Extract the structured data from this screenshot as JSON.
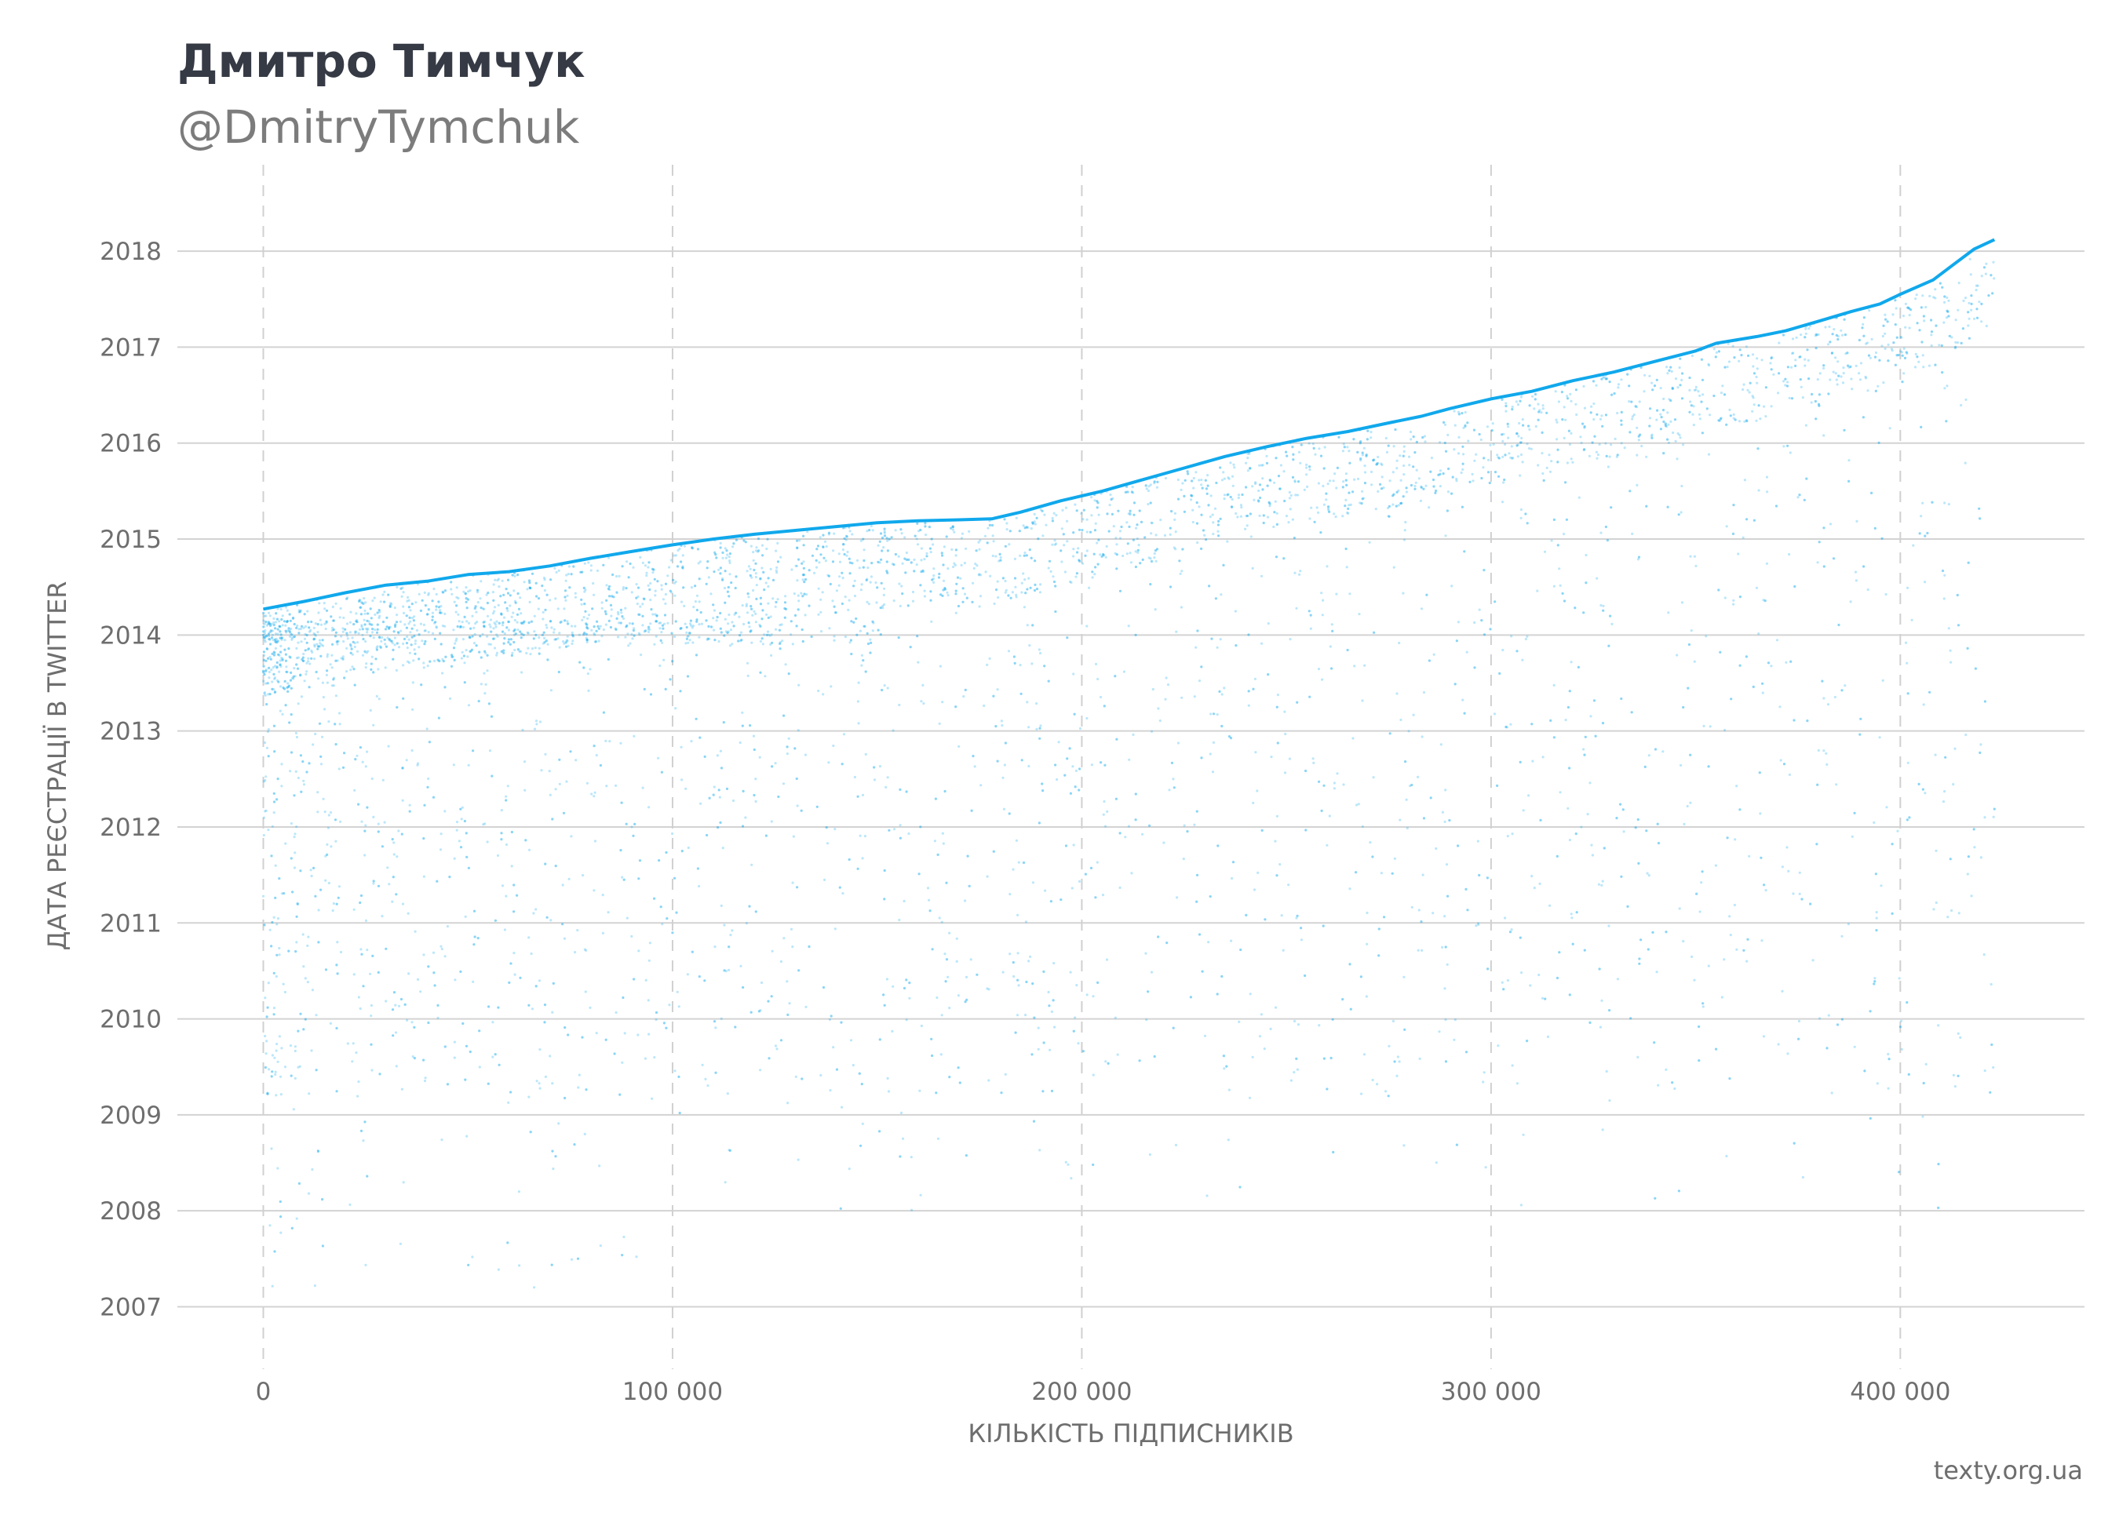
{
  "title": "Дмитро Тимчук",
  "subtitle": "@DmitryTymchuk",
  "source": "texty.org.ua",
  "colors": {
    "points": "#10a8ec",
    "grid_y": "#d3d3d3",
    "grid_x": "#d0d0d0",
    "text": "#6e6e6e"
  },
  "chart_data": {
    "type": "scatter",
    "xlabel": "КІЛЬКІСТЬ ПІДПИСНИКІВ",
    "ylabel": "ДАТА РЕЄСТРАЦІЇ В TWITTER",
    "xlim": [
      -21000,
      445000
    ],
    "ylim": [
      2006.35,
      2018.9
    ],
    "x_ticks": [
      0,
      100000,
      200000,
      300000,
      400000
    ],
    "x_tick_labels": [
      "0",
      "100 000",
      "200 000",
      "300 000",
      "400 000"
    ],
    "y_ticks": [
      2007,
      2008,
      2009,
      2010,
      2011,
      2012,
      2013,
      2014,
      2015,
      2016,
      2017,
      2018
    ],
    "y_tick_labels": [
      "2007",
      "2008",
      "2009",
      "2010",
      "2011",
      "2012",
      "2013",
      "2014",
      "2015",
      "2016",
      "2017",
      "2018"
    ],
    "grid": {
      "x": "dashed",
      "y": "solid"
    },
    "series": [
      {
        "upper_envelope": {
          "x": [
            0,
            10000,
            20000,
            30000,
            40000,
            50000,
            60000,
            70000,
            80000,
            90000,
            100000,
            110000,
            120000,
            130000,
            140000,
            150000,
            160000,
            170000,
            178000,
            185000,
            195000,
            205000,
            215000,
            225000,
            235000,
            245000,
            255000,
            265000,
            275000,
            283000,
            290000,
            300000,
            310000,
            320000,
            330000,
            340000,
            350000,
            355000,
            365000,
            372000,
            380000,
            388000,
            395000,
            400000,
            408000,
            413000,
            418000,
            423000
          ],
          "y": [
            2014.27,
            2014.35,
            2014.44,
            2014.52,
            2014.56,
            2014.63,
            2014.66,
            2014.72,
            2014.8,
            2014.87,
            2014.94,
            2015.0,
            2015.05,
            2015.09,
            2015.13,
            2015.17,
            2015.19,
            2015.2,
            2015.21,
            2015.28,
            2015.4,
            2015.5,
            2015.62,
            2015.74,
            2015.86,
            2015.96,
            2016.05,
            2016.12,
            2016.21,
            2016.28,
            2016.36,
            2016.46,
            2016.54,
            2016.65,
            2016.74,
            2016.85,
            2016.96,
            2017.04,
            2017.11,
            2017.17,
            2017.27,
            2017.37,
            2017.45,
            2017.55,
            2017.7,
            2017.86,
            2018.02,
            2018.12
          ]
        }
      }
    ]
  }
}
